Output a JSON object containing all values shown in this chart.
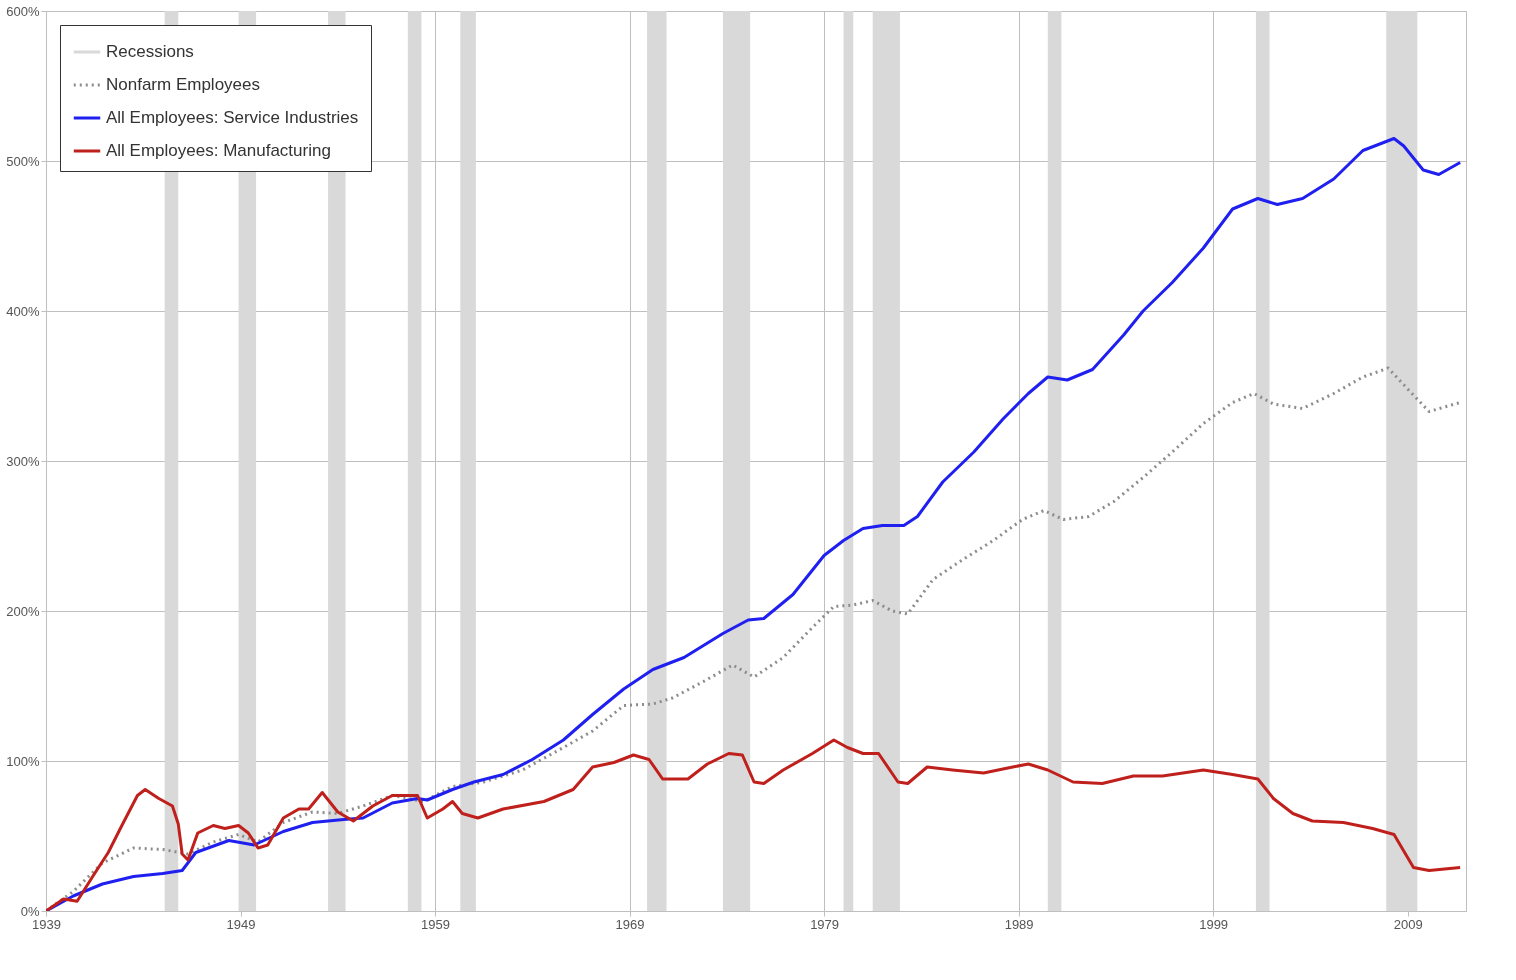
{
  "chart_data": {
    "type": "line",
    "legend": "top left",
    "grid": true,
    "xlim": [
      1939,
      2012
    ],
    "xticks": [
      1939,
      1949,
      1959,
      1969,
      1979,
      1989,
      1999,
      2009
    ],
    "ylim": [
      0,
      600
    ],
    "yticks": [
      {
        "value": 0,
        "label": "0%"
      },
      {
        "value": 100,
        "label": "100%"
      },
      {
        "value": 200,
        "label": "200%"
      },
      {
        "value": 300,
        "label": "300%"
      },
      {
        "value": 400,
        "label": "400%"
      },
      {
        "value": 500,
        "label": "500%"
      },
      {
        "value": 600,
        "label": "600%"
      }
    ],
    "bands": [
      {
        "axis": "x",
        "from": 1945.1,
        "to": 1945.8,
        "label": "Recessions",
        "color": "#d9d9d9"
      },
      {
        "axis": "x",
        "from": 1948.9,
        "to": 1949.8,
        "color": "#d9d9d9"
      },
      {
        "axis": "x",
        "from": 1953.5,
        "to": 1954.4,
        "color": "#d9d9d9"
      },
      {
        "axis": "x",
        "from": 1957.6,
        "to": 1958.3,
        "color": "#d9d9d9"
      },
      {
        "axis": "x",
        "from": 1960.3,
        "to": 1961.1,
        "color": "#d9d9d9"
      },
      {
        "axis": "x",
        "from": 1969.9,
        "to": 1970.9,
        "color": "#d9d9d9"
      },
      {
        "axis": "x",
        "from": 1973.8,
        "to": 1975.2,
        "color": "#d9d9d9"
      },
      {
        "axis": "x",
        "from": 1980.0,
        "to": 1980.5,
        "color": "#d9d9d9"
      },
      {
        "axis": "x",
        "from": 1981.5,
        "to": 1982.9,
        "color": "#d9d9d9"
      },
      {
        "axis": "x",
        "from": 1990.5,
        "to": 1991.2,
        "color": "#d9d9d9"
      },
      {
        "axis": "x",
        "from": 2001.2,
        "to": 2001.9,
        "color": "#d9d9d9"
      },
      {
        "axis": "x",
        "from": 2007.9,
        "to": 2009.5,
        "color": "#d9d9d9"
      }
    ],
    "series": [
      {
        "name": "Nonfarm Employees",
        "color": "#8c8c8c",
        "line_style": "dotted",
        "x": [
          1939.0,
          1940.4,
          1941.9,
          1943.5,
          1945.0,
          1946.3,
          1947.6,
          1948.9,
          1949.9,
          1951.2,
          1952.7,
          1954.0,
          1955.3,
          1956.8,
          1958.4,
          1959.9,
          1961.5,
          1963.5,
          1965.6,
          1967.1,
          1968.7,
          1970.2,
          1971.2,
          1972.8,
          1974.3,
          1975.4,
          1976.9,
          1978.4,
          1979.5,
          1980.5,
          1981.5,
          1982.5,
          1983.3,
          1984.6,
          1986.1,
          1987.7,
          1989.2,
          1990.3,
          1991.3,
          1992.6,
          1993.9,
          1995.4,
          1996.9,
          1998.5,
          2000.0,
          2001.1,
          2002.1,
          2003.6,
          2005.2,
          2006.7,
          2008.0,
          2009.0,
          2010.1,
          2011.7
        ],
        "values": [
          0,
          13,
          32,
          42,
          41,
          38,
          46,
          51,
          46,
          59,
          66,
          65,
          70,
          77,
          73,
          83,
          86,
          94,
          109,
          120,
          137,
          138,
          142,
          153,
          164,
          156,
          169,
          189,
          203,
          204,
          207,
          200,
          198,
          221,
          234,
          247,
          261,
          267,
          261,
          263,
          273,
          289,
          306,
          325,
          339,
          345,
          338,
          335,
          345,
          356,
          362,
          348,
          333,
          339
        ]
      },
      {
        "name": "All Employees: Service Industries",
        "color": "#1f1ff0",
        "line_style": "solid",
        "x": [
          1939.0,
          1940.4,
          1941.9,
          1943.5,
          1945.0,
          1946.0,
          1946.7,
          1948.4,
          1949.7,
          1951.2,
          1952.7,
          1954.3,
          1955.3,
          1956.8,
          1958.1,
          1958.6,
          1959.9,
          1961.0,
          1962.5,
          1964.0,
          1965.6,
          1967.1,
          1968.7,
          1970.2,
          1971.8,
          1973.8,
          1975.1,
          1975.9,
          1977.4,
          1979.0,
          1980.0,
          1981.0,
          1982.0,
          1983.1,
          1983.8,
          1985.1,
          1986.7,
          1988.2,
          1989.5,
          1990.5,
          1991.5,
          1992.8,
          1994.4,
          1995.4,
          1996.9,
          1998.5,
          2000.0,
          2001.3,
          2002.3,
          2003.6,
          2005.2,
          2006.7,
          2008.3,
          2008.8,
          2009.8,
          2010.6,
          2011.7
        ],
        "values": [
          0,
          10,
          18,
          23,
          25,
          27,
          39,
          47,
          44,
          53,
          59,
          61,
          62,
          72,
          75,
          74,
          81,
          86,
          91,
          101,
          114,
          131,
          148,
          161,
          169,
          185,
          194,
          195,
          211,
          237,
          247,
          255,
          257,
          257,
          263,
          286,
          306,
          328,
          345,
          356,
          354,
          361,
          384,
          400,
          419,
          442,
          468,
          475,
          471,
          475,
          488,
          507,
          515,
          510,
          494,
          491,
          499
        ]
      },
      {
        "name": "All Employees: Manufacturing",
        "color": "#c0201c",
        "line_style": "solid",
        "x": [
          1939.0,
          1939.9,
          1940.6,
          1941.4,
          1942.2,
          1942.9,
          1943.7,
          1944.1,
          1944.8,
          1945.5,
          1945.8,
          1946.0,
          1946.3,
          1946.8,
          1947.6,
          1948.2,
          1948.9,
          1949.4,
          1949.9,
          1950.4,
          1951.2,
          1952.0,
          1952.5,
          1953.2,
          1954.0,
          1954.8,
          1955.8,
          1956.8,
          1958.1,
          1958.6,
          1959.4,
          1959.9,
          1960.4,
          1961.2,
          1962.5,
          1964.6,
          1966.1,
          1967.1,
          1968.2,
          1969.2,
          1970.0,
          1970.7,
          1972.0,
          1973.0,
          1974.1,
          1974.8,
          1975.4,
          1975.9,
          1976.9,
          1978.4,
          1979.5,
          1980.2,
          1981.0,
          1981.8,
          1982.8,
          1983.3,
          1984.3,
          1985.6,
          1987.2,
          1988.7,
          1989.5,
          1990.5,
          1991.8,
          1993.3,
          1994.9,
          1996.4,
          1998.5,
          2000.0,
          2001.3,
          2002.1,
          2003.1,
          2004.1,
          2005.7,
          2007.2,
          2008.3,
          2008.8,
          2009.3,
          2010.1,
          2011.7
        ],
        "values": [
          0,
          8,
          6.5,
          23,
          39,
          57,
          77,
          81,
          75,
          70,
          58,
          38,
          34,
          52,
          57,
          55,
          57,
          52,
          42,
          44,
          62,
          68,
          68,
          79,
          66,
          60,
          70,
          77,
          77,
          62,
          68,
          73,
          65,
          62,
          68,
          73,
          81,
          96,
          99,
          104,
          101,
          88,
          88,
          98,
          105,
          104,
          86,
          85,
          94,
          105,
          114,
          109,
          105,
          105,
          86,
          85,
          96,
          94,
          92,
          96,
          98,
          94,
          86,
          85,
          90,
          90,
          94,
          91,
          88,
          75,
          65,
          60,
          59,
          55,
          51,
          40,
          29,
          27,
          29
        ]
      }
    ]
  }
}
